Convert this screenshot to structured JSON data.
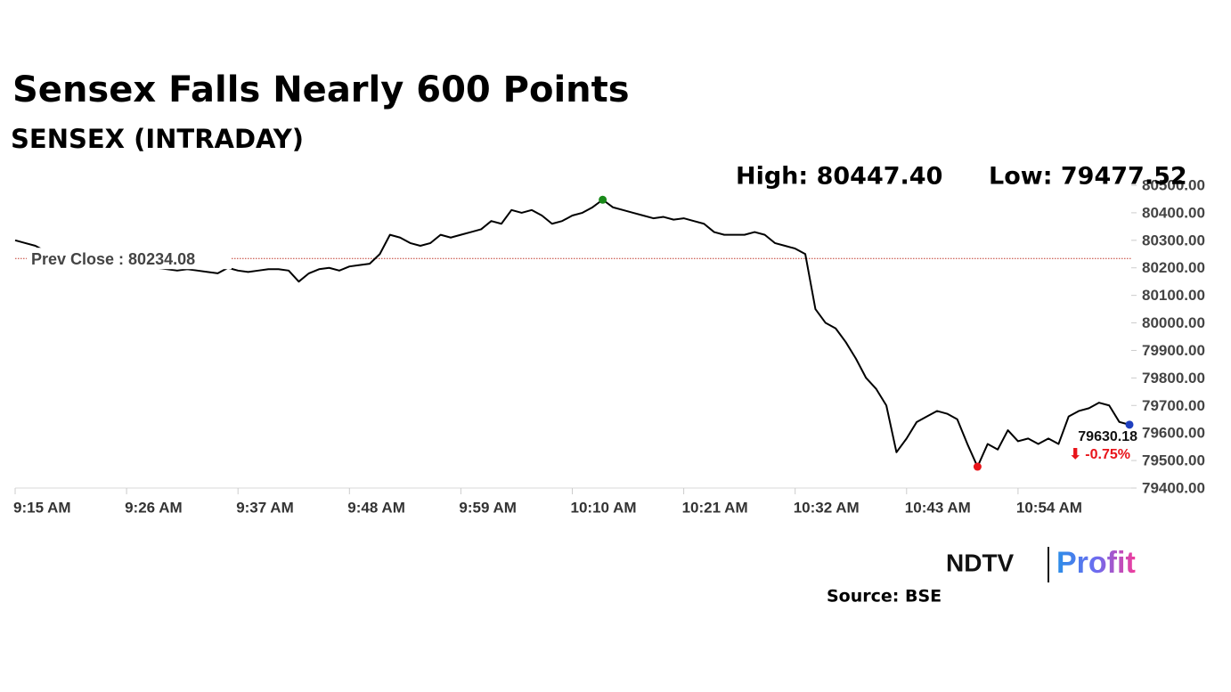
{
  "chart_data": {
    "type": "line",
    "title": "Sensex Falls Nearly 600 Points",
    "subtitle": "SENSEX (INTRADAY)",
    "high_label": "High: 80447.40",
    "low_label": "Low: 79477.52",
    "prev_close_label": "Prev Close : 80234.08",
    "prev_close": 80234.08,
    "last_label": "79630.18",
    "change_label": "⬇ -0.75%",
    "color": "#000000",
    "high_color": "#1a8a1a",
    "low_color": "#e8141a",
    "last_color": "#1f3fbf",
    "x": [
      "9:15 AM",
      "9:16 AM",
      "9:17 AM",
      "9:18 AM",
      "9:19 AM",
      "9:20 AM",
      "9:21 AM",
      "9:22 AM",
      "9:23 AM",
      "9:24 AM",
      "9:25 AM",
      "9:26 AM",
      "9:27 AM",
      "9:28 AM",
      "9:29 AM",
      "9:30 AM",
      "9:31 AM",
      "9:32 AM",
      "9:33 AM",
      "9:34 AM",
      "9:35 AM",
      "9:36 AM",
      "9:37 AM",
      "9:38 AM",
      "9:39 AM",
      "9:40 AM",
      "9:41 AM",
      "9:42 AM",
      "9:43 AM",
      "9:44 AM",
      "9:45 AM",
      "9:46 AM",
      "9:47 AM",
      "9:48 AM",
      "9:49 AM",
      "9:50 AM",
      "9:51 AM",
      "9:52 AM",
      "9:53 AM",
      "9:54 AM",
      "9:55 AM",
      "9:56 AM",
      "9:57 AM",
      "9:58 AM",
      "9:59 AM",
      "10:00 AM",
      "10:01 AM",
      "10:02 AM",
      "10:03 AM",
      "10:04 AM",
      "10:05 AM",
      "10:06 AM",
      "10:07 AM",
      "10:08 AM",
      "10:09 AM",
      "10:10 AM",
      "10:11 AM",
      "10:12 AM",
      "10:13 AM",
      "10:14 AM",
      "10:15 AM",
      "10:16 AM",
      "10:17 AM",
      "10:18 AM",
      "10:19 AM",
      "10:20 AM",
      "10:21 AM",
      "10:22 AM",
      "10:23 AM",
      "10:24 AM",
      "10:25 AM",
      "10:26 AM",
      "10:27 AM",
      "10:28 AM",
      "10:29 AM",
      "10:30 AM",
      "10:31 AM",
      "10:32 AM",
      "10:33 AM",
      "10:34 AM",
      "10:35 AM",
      "10:36 AM",
      "10:37 AM",
      "10:38 AM",
      "10:39 AM",
      "10:40 AM",
      "10:41 AM",
      "10:42 AM",
      "10:43 AM",
      "10:44 AM",
      "10:45 AM",
      "10:46 AM",
      "10:47 AM",
      "10:48 AM",
      "10:49 AM",
      "10:50 AM",
      "10:51 AM",
      "10:52 AM",
      "10:53 AM",
      "10:54 AM",
      "10:55 AM",
      "10:56 AM",
      "10:57 AM",
      "10:58 AM",
      "10:59 AM",
      "11:00 AM",
      "11:01 AM",
      "11:02 AM",
      "11:03 AM",
      "11:04 AM",
      "11:05 AM"
    ],
    "values": [
      80300,
      80290,
      80280,
      80260,
      80250,
      80245,
      80240,
      80235,
      80230,
      80225,
      80220,
      80215,
      80210,
      80205,
      80200,
      80195,
      80190,
      80195,
      80190,
      80185,
      80180,
      80200,
      80190,
      80185,
      80190,
      80195,
      80195,
      80190,
      80150,
      80180,
      80195,
      80200,
      80190,
      80205,
      80210,
      80215,
      80250,
      80320,
      80310,
      80290,
      80280,
      80290,
      80320,
      80310,
      80320,
      80330,
      80340,
      80370,
      80360,
      80410,
      80400,
      80410,
      80390,
      80360,
      80370,
      80390,
      80400,
      80420,
      80447.4,
      80420,
      80410,
      80400,
      80390,
      80380,
      80385,
      80375,
      80380,
      80370,
      80360,
      80330,
      80320,
      80320,
      80320,
      80330,
      80320,
      80290,
      80280,
      80270,
      80250,
      80050,
      80000,
      79980,
      79930,
      79870,
      79800,
      79760,
      79700,
      79530,
      79580,
      79640,
      79660,
      79680,
      79670,
      79650,
      79560,
      79477.52,
      79560,
      79540,
      79610,
      79570,
      79580,
      79560,
      79580,
      79560,
      79660,
      79680,
      79690,
      79710,
      79700,
      79640,
      79630.18
    ],
    "xlim": [
      "9:15 AM",
      "11:05 AM"
    ],
    "xticks": [
      "9:15 AM",
      "9:26 AM",
      "9:37 AM",
      "9:48 AM",
      "9:59 AM",
      "10:10 AM",
      "10:21 AM",
      "10:32 AM",
      "10:43 AM",
      "10:54 AM"
    ],
    "ylim": [
      79400,
      80500
    ],
    "yticks": [
      {
        "value": 79400,
        "label": "79400.00"
      },
      {
        "value": 79500,
        "label": "79500.00"
      },
      {
        "value": 79600,
        "label": "79600.00"
      },
      {
        "value": 79700,
        "label": "79700.00"
      },
      {
        "value": 79800,
        "label": "79800.00"
      },
      {
        "value": 79900,
        "label": "79900.00"
      },
      {
        "value": 80000,
        "label": "80000.00"
      },
      {
        "value": 80100,
        "label": "80100.00"
      },
      {
        "value": 80200,
        "label": "80200.00"
      },
      {
        "value": 80300,
        "label": "80300.00"
      },
      {
        "value": 80400,
        "label": "80400.00"
      },
      {
        "value": 80500,
        "label": "80500.00"
      }
    ],
    "logo_left": "NDTV",
    "logo_right": "Profit",
    "source": "Source: BSE"
  }
}
